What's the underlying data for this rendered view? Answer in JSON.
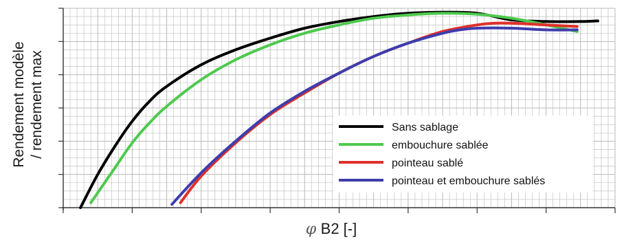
{
  "chart_data": {
    "type": "line",
    "title": "",
    "ylabel_line1": "Rendement modèle",
    "ylabel_line2": "/ rendement max",
    "xlabel_symbol": "φ",
    "xlabel_rest": "B2 [-]",
    "xlim": [
      0,
      16
    ],
    "ylim": [
      0,
      6
    ],
    "grid": true,
    "legend_position": "bottom-right",
    "series": [
      {
        "name": "Sans sablage",
        "color": "#000000",
        "x": [
          0.5,
          1.0,
          1.5,
          2.0,
          2.5,
          3.0,
          4.0,
          5.0,
          6.0,
          7.0,
          8.0,
          9.0,
          10.0,
          11.0,
          12.0,
          13.0,
          14.0,
          15.0,
          15.5
        ],
        "y": [
          0.0,
          1.0,
          1.85,
          2.6,
          3.2,
          3.65,
          4.3,
          4.75,
          5.1,
          5.4,
          5.6,
          5.75,
          5.85,
          5.88,
          5.85,
          5.65,
          5.6,
          5.6,
          5.62
        ]
      },
      {
        "name": "embouchure sablée",
        "color": "#4ec94e",
        "x": [
          0.8,
          1.5,
          2.0,
          2.5,
          3.0,
          4.0,
          5.0,
          6.0,
          7.0,
          8.0,
          9.0,
          10.0,
          11.0,
          12.0,
          13.0,
          14.0,
          14.9
        ],
        "y": [
          0.15,
          1.2,
          1.95,
          2.55,
          3.05,
          3.85,
          4.45,
          4.9,
          5.25,
          5.5,
          5.7,
          5.8,
          5.85,
          5.82,
          5.7,
          5.5,
          5.3
        ]
      },
      {
        "name": "pointeau sablé",
        "color": "#e0302a",
        "x": [
          3.4,
          4.0,
          5.0,
          6.0,
          7.0,
          8.0,
          9.0,
          10.0,
          11.0,
          12.0,
          12.5,
          13.0,
          14.0,
          14.9
        ],
        "y": [
          0.15,
          0.95,
          1.95,
          2.8,
          3.45,
          4.05,
          4.55,
          4.95,
          5.3,
          5.5,
          5.55,
          5.55,
          5.5,
          5.45
        ]
      },
      {
        "name": "pointeau et embouchure sablés",
        "color": "#3d3dad",
        "x": [
          3.15,
          4.0,
          5.0,
          6.0,
          7.0,
          8.0,
          9.0,
          10.0,
          11.0,
          11.5,
          12.0,
          13.0,
          14.0,
          14.9
        ],
        "y": [
          0.1,
          1.05,
          2.0,
          2.85,
          3.5,
          4.05,
          4.55,
          4.95,
          5.25,
          5.35,
          5.4,
          5.4,
          5.35,
          5.35
        ]
      }
    ]
  },
  "colors": {
    "grid": "#b8b8b8",
    "axis": "#333333",
    "background": "#ffffff"
  }
}
